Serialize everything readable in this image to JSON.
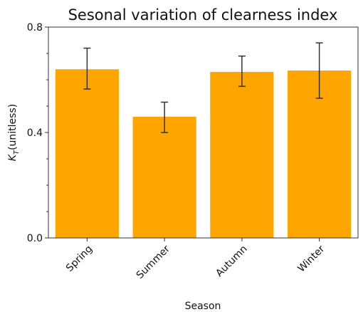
{
  "chart_data": {
    "type": "bar",
    "title": "Sesonal variation of clearness index",
    "xlabel": "Season",
    "ylabel": {
      "main": "K",
      "subscript": "T",
      "suffix": "(unitless)"
    },
    "categories": [
      "Spring",
      "Summer",
      "Autumn",
      "Winter"
    ],
    "values": [
      0.64,
      0.46,
      0.63,
      0.635
    ],
    "error_low": [
      0.565,
      0.4,
      0.575,
      0.53
    ],
    "error_high": [
      0.72,
      0.515,
      0.69,
      0.74
    ],
    "ylim": [
      0.0,
      0.8
    ],
    "yticks": [
      0.0,
      0.4,
      0.8
    ],
    "ytick_labels": [
      "0.0",
      "0.4",
      "0.8"
    ],
    "bar_color": "#FFA500",
    "error_color": "#333333",
    "grid": false,
    "legend": "none"
  }
}
